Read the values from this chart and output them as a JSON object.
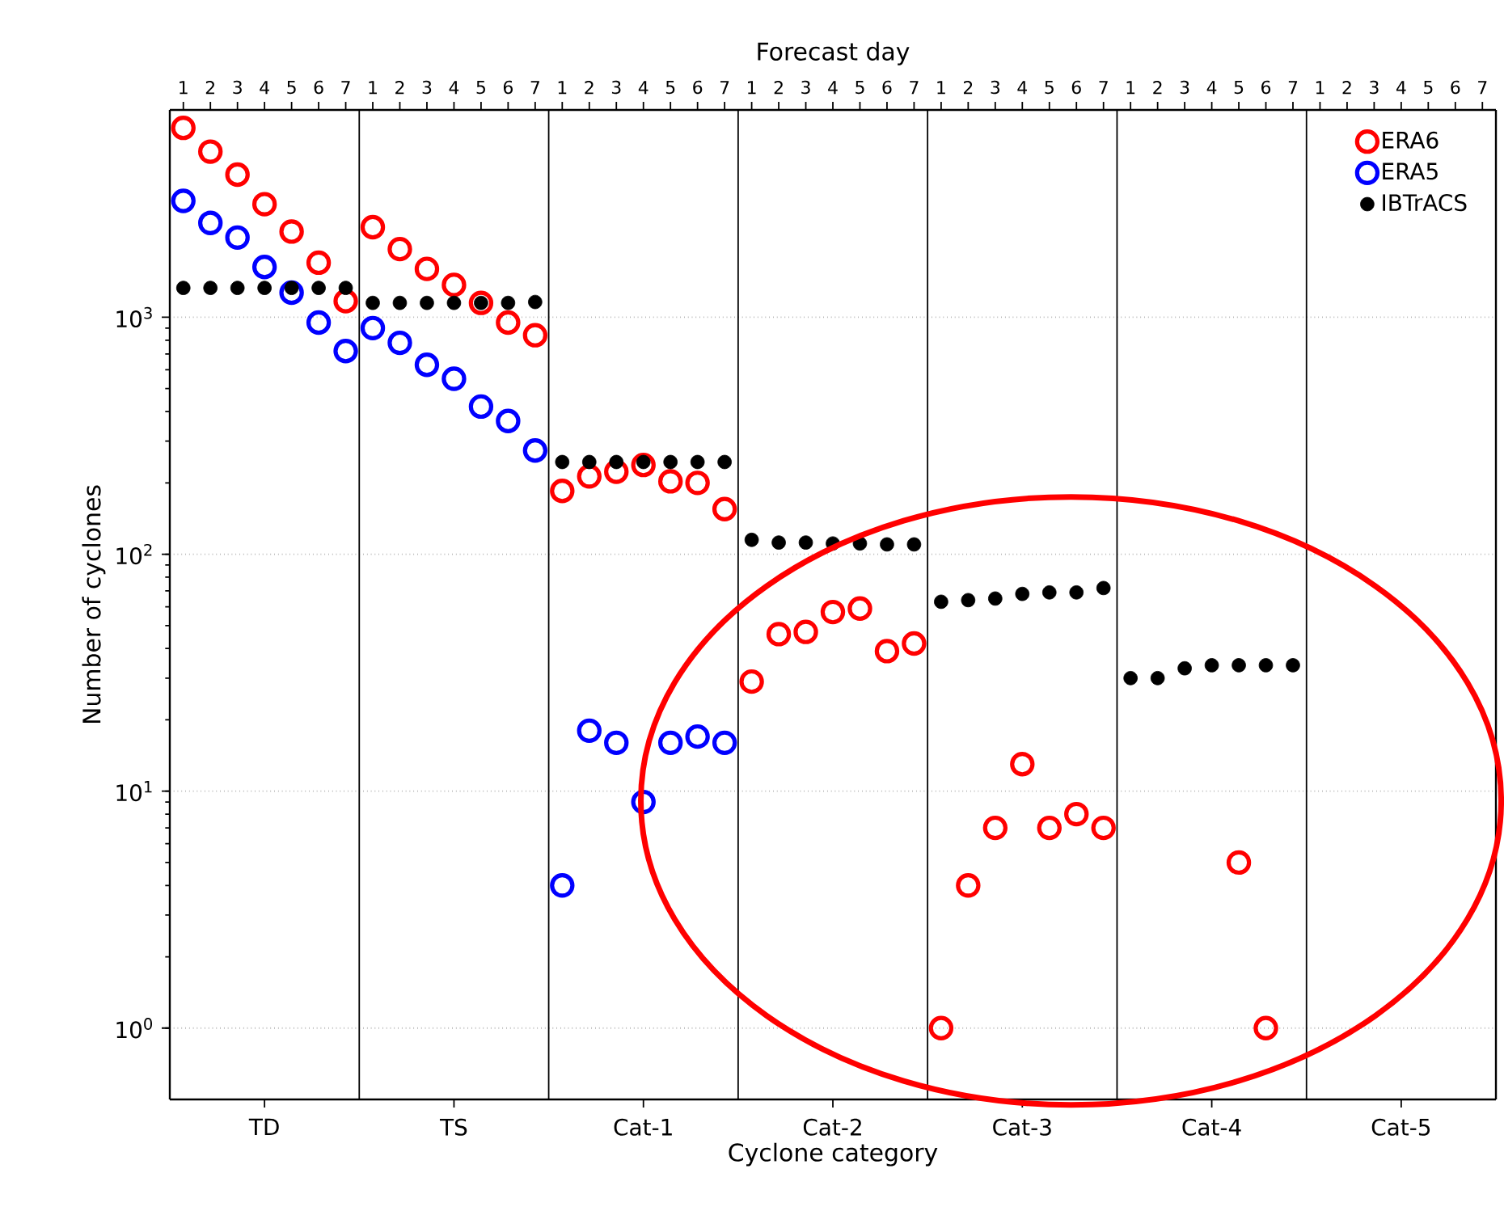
{
  "chart_data": {
    "type": "scatter",
    "xlabel": "Cyclone category",
    "ylabel": "Number of cyclones",
    "x2label": "Forecast day",
    "categories": [
      "1",
      "2",
      "3",
      "4",
      "5",
      "6",
      "7",
      "1",
      "2",
      "3",
      "4",
      "5",
      "6",
      "7",
      "1",
      "2",
      "3",
      "4",
      "5",
      "6",
      "7",
      "1",
      "2",
      "3",
      "4",
      "5",
      "6",
      "7",
      "1",
      "2",
      "3",
      "4",
      "5",
      "6",
      "7",
      "1",
      "2",
      "3",
      "4",
      "5",
      "6",
      "7",
      "1",
      "2",
      "3",
      "4",
      "5",
      "6",
      "7"
    ],
    "annotations": [
      "TD",
      "TS",
      "Cat-1",
      "Cat-2",
      "Cat-3",
      "Cat-4",
      "Cat-5"
    ],
    "log": "y",
    "ylim": [
      0.5,
      7500
    ],
    "yticks": [
      {
        "value": 1,
        "label": "10$^{0}$"
      },
      {
        "value": 10,
        "label": "10$^{1}$"
      },
      {
        "value": 100,
        "label": "10$^{2}$"
      },
      {
        "value": 1000,
        "label": "10$^{3}$"
      }
    ],
    "grid": "y",
    "legend": "top right",
    "marker": "circle",
    "series": [
      {
        "name": "ERA6",
        "color": "#ff0000",
        "values": [
          6300,
          5000,
          4000,
          3000,
          2300,
          1700,
          1170,
          2400,
          1940,
          1600,
          1370,
          1150,
          950,
          840,
          185,
          213,
          223,
          238,
          203,
          200,
          155,
          29,
          46,
          47,
          57,
          59,
          39,
          42,
          1,
          4,
          7,
          13,
          7,
          8,
          7,
          null,
          null,
          null,
          null,
          5,
          1,
          null,
          null,
          null,
          null,
          null,
          null,
          null,
          null
        ]
      },
      {
        "name": "ERA5",
        "color": "#0000ff",
        "values": [
          3100,
          2500,
          2170,
          1630,
          1270,
          950,
          720,
          900,
          780,
          630,
          550,
          420,
          365,
          274,
          4,
          18,
          16,
          9,
          16,
          17,
          16,
          null,
          null,
          null,
          null,
          null,
          null,
          null,
          null,
          null,
          null,
          null,
          null,
          null,
          null,
          null,
          null,
          null,
          null,
          null,
          null,
          null,
          null,
          null,
          null,
          null,
          null,
          null,
          null
        ]
      },
      {
        "name": "IBTrACS",
        "color": "#000000",
        "values": [
          1330,
          1330,
          1330,
          1330,
          1330,
          1330,
          1330,
          1150,
          1150,
          1150,
          1150,
          1150,
          1150,
          1160,
          245,
          245,
          245,
          245,
          245,
          245,
          245,
          115,
          112,
          112,
          111,
          111,
          110,
          110,
          63,
          64,
          65,
          68,
          69,
          69,
          72,
          30,
          30,
          33,
          34,
          34,
          34,
          34,
          null,
          null,
          null,
          null,
          null,
          null,
          null
        ]
      }
    ]
  }
}
